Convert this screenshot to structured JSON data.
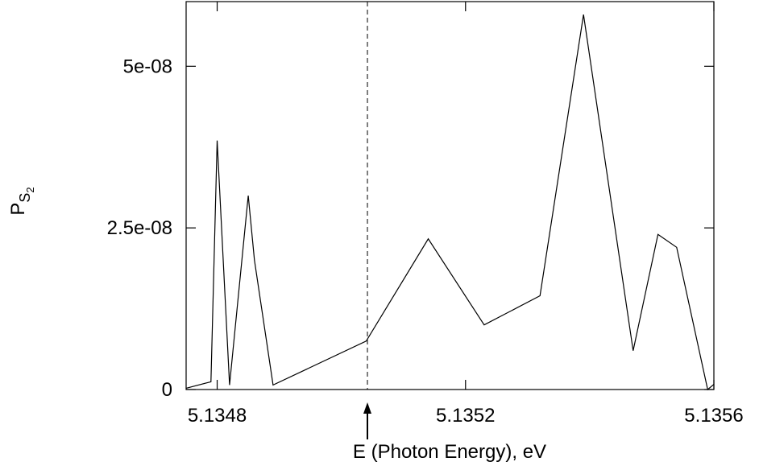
{
  "chart_data": {
    "type": "line",
    "title": "",
    "xlabel": "E (Photon Energy), eV",
    "ylabel_main": "P",
    "ylabel_sub": "S",
    "ylabel_subsub": "2",
    "xlim": [
      5.13475,
      5.1356
    ],
    "ylim": [
      0,
      6e-08
    ],
    "x_ticks": [
      {
        "value": 5.1348,
        "label": "5.1348"
      },
      {
        "value": 5.1352,
        "label": "5.1352"
      },
      {
        "value": 5.1356,
        "label": "5.1356"
      }
    ],
    "y_ticks": [
      {
        "value": 0,
        "label": "0"
      },
      {
        "value": 2.5e-08,
        "label": "2.5e-08"
      },
      {
        "value": 5e-08,
        "label": "5e-08"
      }
    ],
    "grid": false,
    "legend": "none",
    "marker_line": {
      "x": 5.135042,
      "style": "dashed"
    },
    "series": [
      {
        "name": "",
        "color": "#000000",
        "x": [
          5.13475,
          5.13479,
          5.1348,
          5.13482,
          5.13485,
          5.13486,
          5.13489,
          5.13504,
          5.13514,
          5.13523,
          5.13532,
          5.13539,
          5.13547,
          5.13551,
          5.13554,
          5.13559,
          5.1356
        ],
        "y": [
          2e-10,
          1.2e-09,
          3.85e-08,
          7e-10,
          3e-08,
          2e-08,
          7e-10,
          7.5e-09,
          2.33e-08,
          1e-08,
          1.45e-08,
          5.8e-08,
          6e-09,
          2.4e-08,
          2.2e-08,
          0,
          8e-10
        ]
      }
    ]
  }
}
